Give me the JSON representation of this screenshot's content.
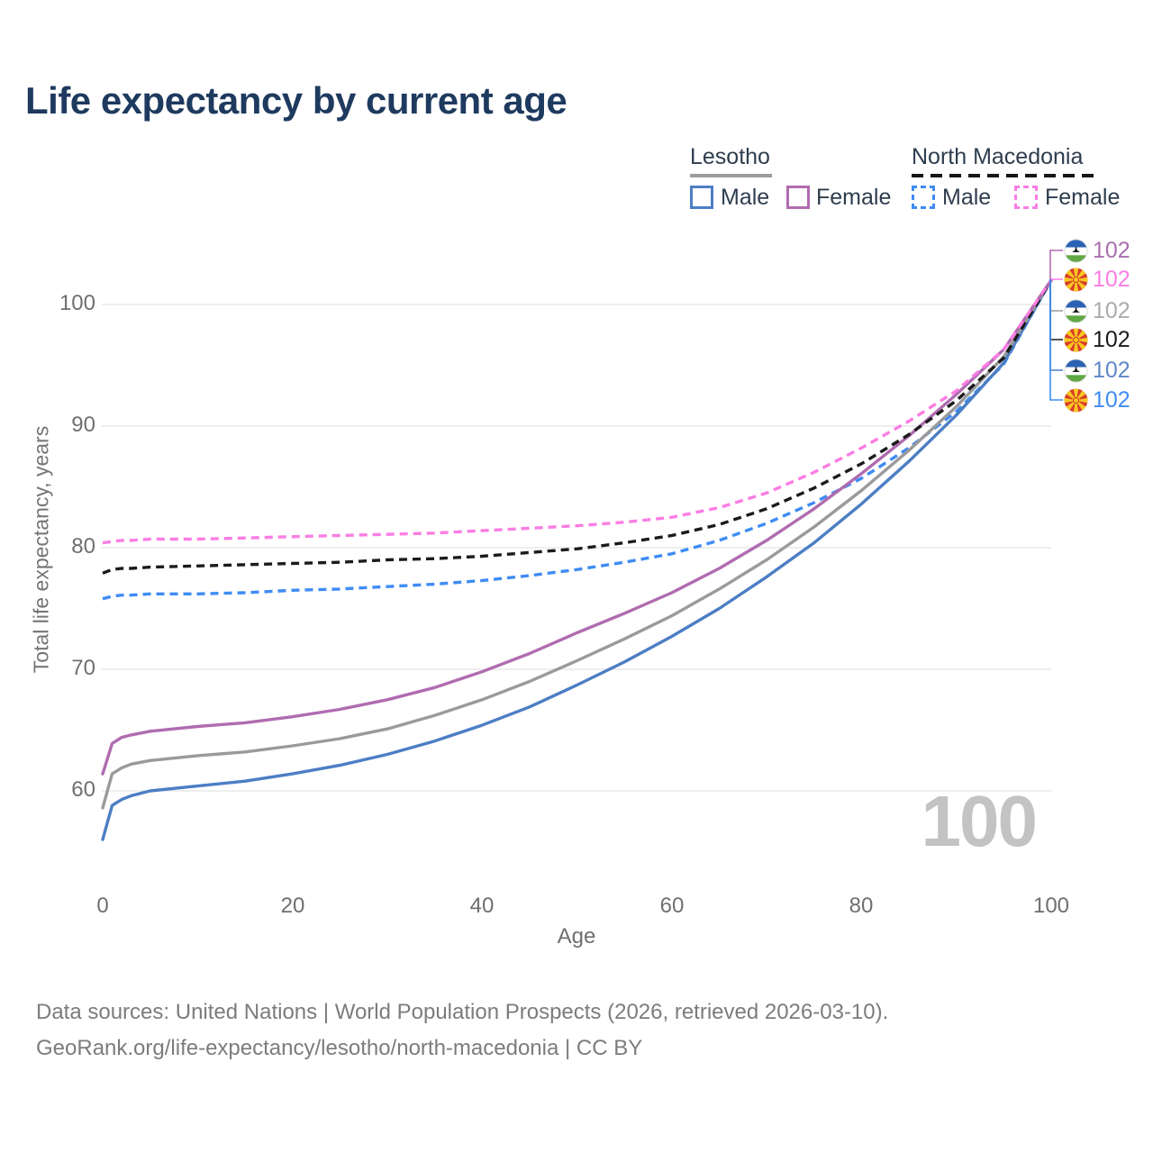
{
  "title": "Life expectancy by current age",
  "legend": {
    "groups": [
      {
        "label": "Lesotho",
        "line_style": "solid",
        "rule_color": "#9c9c9c",
        "items": [
          {
            "label": "Male",
            "color": "#4c7ec4"
          },
          {
            "label": "Female",
            "color": "#b06cb0"
          }
        ]
      },
      {
        "label": "North Macedonia",
        "line_style": "dashed",
        "rule_color": "#161616",
        "items": [
          {
            "label": "Male",
            "color": "#3f8cf4"
          },
          {
            "label": "Female",
            "color": "#fb7de4"
          }
        ]
      }
    ]
  },
  "watermark": "100",
  "footer": {
    "line1": "Data sources: United Nations | World Population Prospects (2026, retrieved 2026-03-10).",
    "line2": "GeoRank.org/life-expectancy/lesotho/north-macedonia | CC BY"
  },
  "end_labels": [
    {
      "series_id": "lesotho_female",
      "flag": "lesotho",
      "value": "102",
      "color": "#a96fae"
    },
    {
      "series_id": "nm_female",
      "flag": "north-macedonia",
      "value": "102",
      "color": "#fb7de4"
    },
    {
      "series_id": "lesotho_total",
      "flag": "lesotho",
      "value": "102",
      "color": "#ababab"
    },
    {
      "series_id": "nm_total",
      "flag": "north-macedonia",
      "value": "102",
      "color": "#1b1b1b"
    },
    {
      "series_id": "lesotho_male",
      "flag": "lesotho",
      "value": "102",
      "color": "#5e87c8"
    },
    {
      "series_id": "nm_male",
      "flag": "north-macedonia",
      "value": "102",
      "color": "#3f8cf4"
    }
  ],
  "colors": {
    "title": "#1e3a5f",
    "grid": "#e8e8e8",
    "axis_text": "#6f6f6f",
    "footer_text": "#7c7c7c",
    "watermark": "#c3c3c3"
  },
  "chart_data": {
    "type": "line",
    "title": "Life expectancy by current age",
    "xlabel": "Age",
    "ylabel": "Total life expectancy, years",
    "xlim": [
      0,
      100
    ],
    "ylim": [
      56,
      103
    ],
    "x_ticks": [
      0,
      20,
      40,
      60,
      80,
      100
    ],
    "y_ticks": [
      100,
      90,
      80,
      70,
      60
    ],
    "grid": "horizontal-only",
    "legend_position": "top-right",
    "x": [
      0,
      1,
      2,
      3,
      5,
      10,
      15,
      20,
      25,
      30,
      35,
      40,
      45,
      50,
      55,
      60,
      65,
      70,
      75,
      80,
      85,
      90,
      95,
      100
    ],
    "series": [
      {
        "id": "nm_male",
        "name": "North Macedonia Male",
        "style": "dashed",
        "color": "#3f8cf4",
        "values": [
          75.8,
          76.0,
          76.1,
          76.1,
          76.2,
          76.2,
          76.3,
          76.5,
          76.6,
          76.8,
          77.0,
          77.3,
          77.7,
          78.2,
          78.8,
          79.5,
          80.6,
          82.0,
          83.7,
          85.7,
          88.2,
          91.2,
          95.1,
          102
        ]
      },
      {
        "id": "lesotho_male",
        "name": "Lesotho Male",
        "style": "solid",
        "color": "#4c7ec4",
        "values": [
          56.0,
          58.8,
          59.3,
          59.6,
          60.0,
          60.4,
          60.8,
          61.4,
          62.1,
          63.0,
          64.1,
          65.4,
          66.9,
          68.7,
          70.6,
          72.7,
          75.0,
          77.6,
          80.4,
          83.6,
          87.1,
          90.9,
          95.2,
          102
        ]
      },
      {
        "id": "lesotho_total",
        "name": "Lesotho Total",
        "style": "solid",
        "color": "#9a9a9a",
        "values": [
          58.6,
          61.4,
          61.9,
          62.2,
          62.5,
          62.9,
          63.2,
          63.7,
          64.3,
          65.1,
          66.2,
          67.5,
          69.0,
          70.7,
          72.5,
          74.4,
          76.6,
          79.0,
          81.7,
          84.7,
          88.0,
          91.6,
          95.7,
          102
        ]
      },
      {
        "id": "lesotho_female",
        "name": "Lesotho Female",
        "style": "solid",
        "color": "#b06cb0",
        "values": [
          61.4,
          63.9,
          64.4,
          64.6,
          64.9,
          65.3,
          65.6,
          66.1,
          66.7,
          67.5,
          68.5,
          69.8,
          71.3,
          73.0,
          74.6,
          76.3,
          78.3,
          80.6,
          83.2,
          86.1,
          89.2,
          92.6,
          96.3,
          102
        ]
      },
      {
        "id": "nm_total",
        "name": "North Macedonia Total",
        "style": "dashed",
        "color": "#1b1b1b",
        "values": [
          77.9,
          78.2,
          78.3,
          78.3,
          78.4,
          78.5,
          78.6,
          78.7,
          78.8,
          79.0,
          79.1,
          79.3,
          79.6,
          79.9,
          80.4,
          81.0,
          81.9,
          83.2,
          84.9,
          86.9,
          89.3,
          92.1,
          95.6,
          102
        ]
      },
      {
        "id": "nm_female",
        "name": "North Macedonia Female",
        "style": "dashed",
        "color": "#fb7de4",
        "values": [
          80.4,
          80.5,
          80.6,
          80.6,
          80.7,
          80.7,
          80.8,
          80.9,
          81.0,
          81.1,
          81.2,
          81.4,
          81.6,
          81.8,
          82.1,
          82.5,
          83.3,
          84.5,
          86.2,
          88.2,
          90.4,
          92.9,
          96.3,
          102
        ]
      }
    ]
  }
}
